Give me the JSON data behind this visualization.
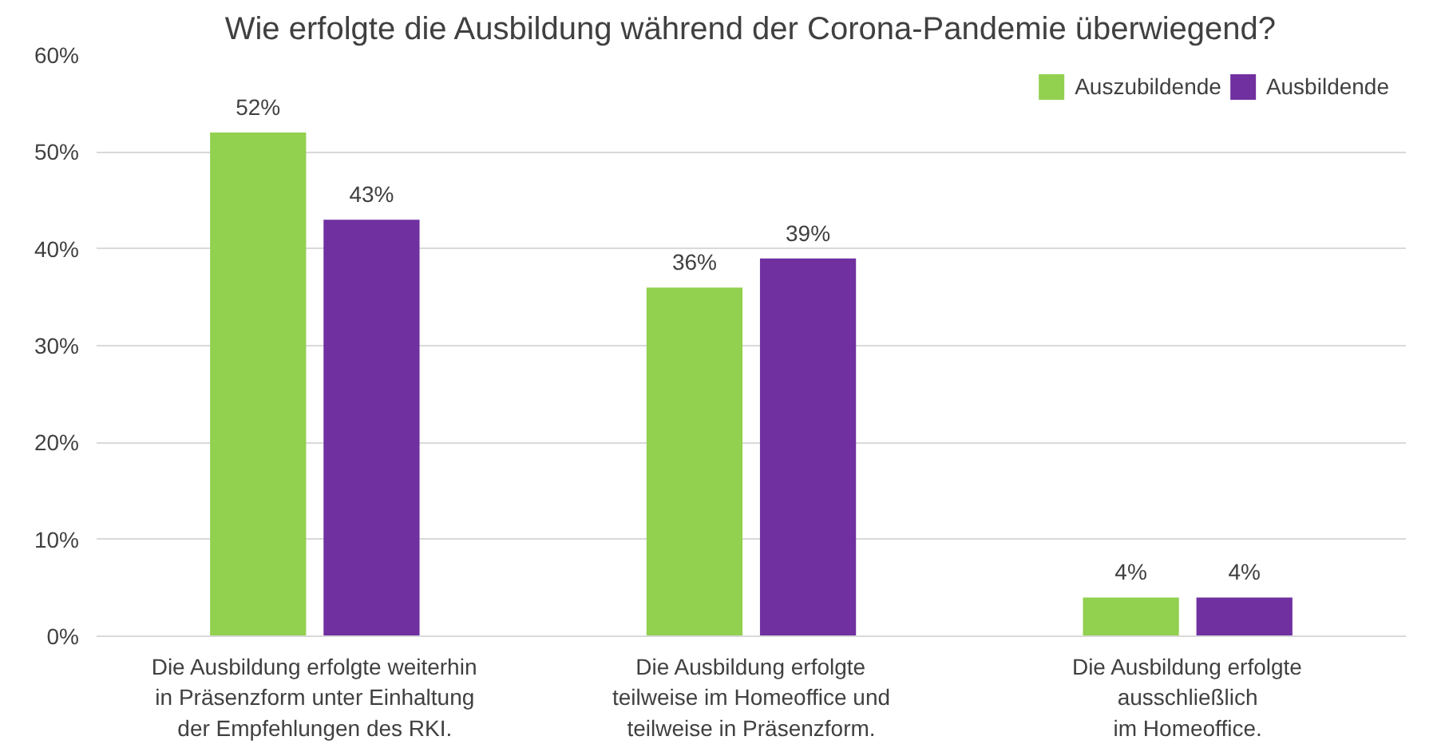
{
  "chart_data": {
    "type": "bar",
    "title": "Wie erfolgte die Ausbildung während der Corona-Pandemie überwiegend?",
    "categories": [
      "Die Ausbildung erfolgte weiterhin\nin Präsenzform unter Einhaltung\nder Empfehlungen des RKI.",
      "Die Ausbildung erfolgte\nteilweise im Homeoffice und\nteilweise in Präsenzform.",
      "Die Ausbildung erfolgte\nausschließlich\nim Homeoffice."
    ],
    "series": [
      {
        "name": "Auszubildende",
        "color": "#92d050",
        "values": [
          52,
          36,
          4
        ],
        "value_labels": [
          "52%",
          "36%",
          "4%"
        ]
      },
      {
        "name": "Ausbildende",
        "color": "#7030a0",
        "values": [
          43,
          39,
          4
        ],
        "value_labels": [
          "43%",
          "39%",
          "4%"
        ]
      }
    ],
    "ylim": [
      0,
      60
    ],
    "yticks": [
      {
        "value": 0,
        "label": "0%"
      },
      {
        "value": 10,
        "label": "10%"
      },
      {
        "value": 20,
        "label": "20%"
      },
      {
        "value": 30,
        "label": "30%"
      },
      {
        "value": 40,
        "label": "40%"
      },
      {
        "value": 50,
        "label": "50%"
      },
      {
        "value": 60,
        "label": "60%"
      }
    ],
    "grid": "y",
    "legend": "top right"
  }
}
